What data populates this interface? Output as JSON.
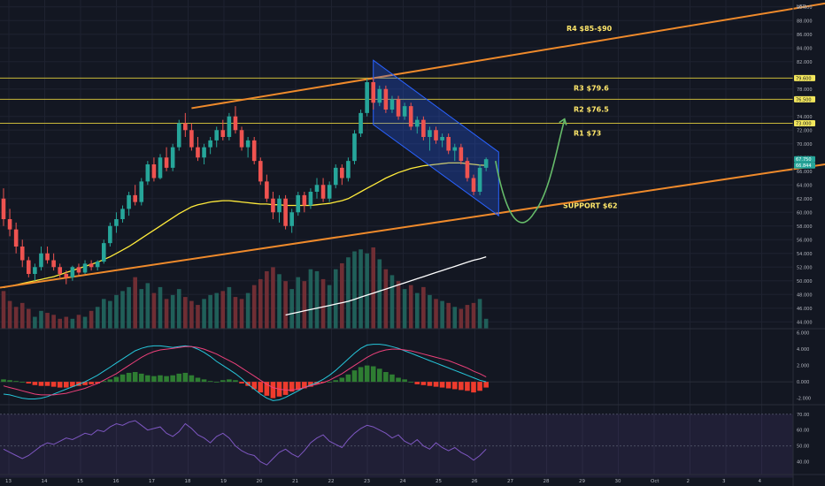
{
  "chart_data": {
    "type": "candlestick",
    "price_axis": {
      "ticks": [
        "90.000",
        "88.000",
        "86.000",
        "84.000",
        "82.000",
        "78.000",
        "74.000",
        "72.000",
        "70.000",
        "68.000",
        "66.000",
        "64.000",
        "62.000",
        "60.000",
        "58.000",
        "56.000",
        "54.000",
        "52.000",
        "50.000",
        "48.000",
        "46.000",
        "44.000"
      ],
      "axis_unit": "USD",
      "range": [
        43,
        91
      ]
    },
    "price_badges": [
      {
        "label": "79.600",
        "value": 79.6,
        "style": "yellow"
      },
      {
        "label": "76.500",
        "value": 76.5,
        "style": "yellow"
      },
      {
        "label": "73.000",
        "value": 73.0,
        "style": "yellow"
      },
      {
        "label": "67.750",
        "value": 67.75,
        "style": "teal"
      },
      {
        "label": "66.844",
        "value": 66.844,
        "style": "teal"
      }
    ],
    "levels": [
      {
        "label": "R4 $85-$90",
        "value": 86.5
      },
      {
        "label": "R3 $79.6",
        "value": 79.6
      },
      {
        "label": "R2 $76.5",
        "value": 76.5
      },
      {
        "label": "R1 $73",
        "value": 73
      },
      {
        "label": "SUPPORT $62",
        "value": 62
      }
    ],
    "date_axis": [
      "13",
      "14",
      "15",
      "16",
      "17",
      "18",
      "19",
      "20",
      "21",
      "22",
      "23",
      "24",
      "25",
      "26",
      "27",
      "28",
      "29",
      "30",
      "Oct",
      "2",
      "3",
      "4"
    ],
    "candles": [
      [
        62,
        63.5,
        58,
        59
      ],
      [
        59,
        60.5,
        56.5,
        57.5
      ],
      [
        57.5,
        58.5,
        54,
        55
      ],
      [
        55,
        56,
        52,
        53
      ],
      [
        53,
        53.5,
        50.5,
        51
      ],
      [
        51,
        52.5,
        50,
        52
      ],
      [
        52,
        55,
        51.5,
        54
      ],
      [
        54,
        55,
        52.5,
        53
      ],
      [
        53,
        54,
        51.5,
        52
      ],
      [
        52,
        52.5,
        50.5,
        51
      ],
      [
        51,
        51.5,
        49.5,
        50.5
      ],
      [
        50.5,
        52.2,
        50,
        52
      ],
      [
        52,
        52.5,
        50.8,
        51.2
      ],
      [
        51.2,
        53,
        51,
        52.5
      ],
      [
        52.5,
        53,
        51.5,
        52
      ],
      [
        52,
        53,
        51.5,
        52.8
      ],
      [
        52.8,
        56,
        52.5,
        55.5
      ],
      [
        55.5,
        58.5,
        55,
        58
      ],
      [
        58,
        60,
        57,
        59
      ],
      [
        59,
        61,
        58.5,
        60.5
      ],
      [
        60.5,
        63,
        59.5,
        62.5
      ],
      [
        62.5,
        64,
        61,
        61.5
      ],
      [
        61.5,
        65,
        61,
        64.5
      ],
      [
        64.5,
        67.5,
        64,
        67
      ],
      [
        67,
        68,
        64.5,
        65
      ],
      [
        65,
        68.5,
        64.8,
        68
      ],
      [
        68,
        69.5,
        66,
        66.5
      ],
      [
        66.5,
        70,
        66,
        69.5
      ],
      [
        69.5,
        73.5,
        69,
        73
      ],
      [
        73,
        74.5,
        71,
        72
      ],
      [
        72,
        73,
        69,
        69.5
      ],
      [
        69.5,
        71,
        67.5,
        68
      ],
      [
        68,
        70,
        67,
        69.5
      ],
      [
        69.5,
        71,
        68.5,
        70.5
      ],
      [
        70.5,
        72.5,
        69.5,
        72
      ],
      [
        72,
        73.5,
        70.5,
        71
      ],
      [
        71,
        74.5,
        70.5,
        74
      ],
      [
        74,
        75.5,
        71.5,
        72
      ],
      [
        72,
        72.5,
        69,
        69.5
      ],
      [
        69.5,
        71,
        68,
        70.5
      ],
      [
        70.5,
        71,
        67,
        67.5
      ],
      [
        67.5,
        68,
        64,
        64.5
      ],
      [
        64.5,
        65.5,
        61.5,
        62
      ],
      [
        62,
        63,
        59,
        60
      ],
      [
        60,
        62.5,
        58.5,
        62
      ],
      [
        62,
        62.5,
        57.5,
        58
      ],
      [
        58,
        60.5,
        57,
        60
      ],
      [
        60,
        63,
        59.5,
        62.5
      ],
      [
        62.5,
        63,
        60,
        61
      ],
      [
        61,
        63.5,
        60.5,
        63
      ],
      [
        63,
        65,
        62,
        64
      ],
      [
        64,
        65,
        61.5,
        62
      ],
      [
        62,
        64.5,
        61.5,
        64
      ],
      [
        64,
        67,
        63.5,
        66.5
      ],
      [
        66.5,
        67,
        64,
        65
      ],
      [
        65,
        68,
        64.5,
        67.5
      ],
      [
        67.5,
        72,
        67,
        71.5
      ],
      [
        71.5,
        75,
        71,
        74.5
      ],
      [
        74.5,
        79.5,
        74,
        79
      ],
      [
        79,
        79.5,
        75,
        76
      ],
      [
        76,
        78.5,
        75.5,
        78
      ],
      [
        78,
        78.5,
        74.5,
        75
      ],
      [
        75,
        77,
        74.5,
        76.5
      ],
      [
        76.5,
        77,
        73.5,
        74
      ],
      [
        74,
        76,
        73.5,
        75.5
      ],
      [
        75.5,
        76,
        72,
        72.5
      ],
      [
        72.5,
        74,
        71.5,
        73.5
      ],
      [
        73.5,
        74,
        70.5,
        71
      ],
      [
        71,
        72.5,
        69,
        72
      ],
      [
        72,
        72.5,
        70,
        70.5
      ],
      [
        70.5,
        71.5,
        69.5,
        71
      ],
      [
        71,
        71.5,
        68.5,
        69
      ],
      [
        69,
        70,
        67.5,
        69.5
      ],
      [
        69.5,
        70,
        67,
        67.5
      ],
      [
        67.5,
        68,
        64.5,
        65
      ],
      [
        65,
        65.5,
        62.5,
        63
      ],
      [
        63,
        67,
        62.5,
        66.5
      ],
      [
        66.5,
        68,
        66,
        67.75
      ]
    ],
    "volume": [
      38,
      28,
      22,
      26,
      20,
      12,
      18,
      16,
      14,
      10,
      12,
      10,
      14,
      12,
      18,
      22,
      30,
      28,
      34,
      38,
      42,
      52,
      40,
      46,
      36,
      42,
      30,
      34,
      40,
      32,
      28,
      24,
      30,
      34,
      36,
      38,
      42,
      32,
      30,
      36,
      44,
      50,
      58,
      62,
      55,
      48,
      40,
      52,
      48,
      60,
      58,
      50,
      44,
      60,
      66,
      72,
      78,
      80,
      76,
      82,
      70,
      60,
      54,
      48,
      40,
      44,
      36,
      42,
      34,
      30,
      28,
      26,
      22,
      20,
      24,
      26,
      30,
      10
    ],
    "moving_averages": [
      {
        "color": "#ffeb3b",
        "values": [
          49,
          49.2,
          49.4,
          49.6,
          49.8,
          50,
          50.2,
          50.4,
          50.6,
          50.9,
          51.2,
          51.5,
          51.8,
          52.1,
          52.4,
          52.7,
          53.1,
          53.5,
          54,
          54.5,
          55,
          55.6,
          56.2,
          56.8,
          57.4,
          58,
          58.6,
          59.2,
          59.8,
          60.3,
          60.8,
          61.1,
          61.3,
          61.5,
          61.6,
          61.7,
          61.7,
          61.6,
          61.5,
          61.4,
          61.3,
          61.2,
          61.2,
          61.1,
          61.1,
          61,
          61,
          61,
          61,
          61,
          61.1,
          61.2,
          61.3,
          61.5,
          61.7,
          62,
          62.5,
          63,
          63.5,
          64,
          64.5,
          65,
          65.4,
          65.8,
          66.1,
          66.4,
          66.6,
          66.8,
          66.9,
          67,
          67.1,
          67.2,
          67.2,
          67.2,
          67.1,
          67,
          66.9,
          66.844
        ]
      },
      {
        "color": "#ffffff",
        "values": [
          null,
          null,
          null,
          null,
          null,
          null,
          null,
          null,
          null,
          null,
          null,
          null,
          null,
          null,
          null,
          null,
          null,
          null,
          null,
          null,
          null,
          null,
          null,
          null,
          null,
          null,
          null,
          null,
          null,
          null,
          null,
          null,
          null,
          null,
          null,
          null,
          null,
          null,
          null,
          null,
          null,
          null,
          null,
          null,
          null,
          45,
          45.2,
          45.4,
          45.6,
          45.8,
          46,
          46.2,
          46.4,
          46.6,
          46.8,
          47,
          47.3,
          47.6,
          47.9,
          48.2,
          48.5,
          48.8,
          49.1,
          49.4,
          49.7,
          50,
          50.3,
          50.6,
          50.9,
          51.2,
          51.5,
          51.8,
          52.1,
          52.4,
          52.7,
          53,
          53.2,
          53.5
        ]
      }
    ],
    "macd_axis": [
      "6.000",
      "4.000",
      "2.000",
      "0.000",
      "-2.000"
    ],
    "macd_range": [
      -2.8,
      6.5
    ],
    "macd": {
      "hist": [
        0.3,
        0.2,
        0.1,
        0.0,
        -0.2,
        -0.4,
        -0.5,
        -0.5,
        -0.6,
        -0.7,
        -0.7,
        -0.6,
        -0.5,
        -0.4,
        -0.3,
        -0.2,
        0.1,
        0.3,
        0.6,
        0.9,
        1.1,
        1.2,
        1.0,
        0.8,
        0.7,
        0.8,
        0.7,
        0.8,
        1.0,
        1.1,
        0.8,
        0.5,
        0.3,
        0.1,
        0.0,
        0.2,
        0.3,
        0.2,
        -0.2,
        -0.5,
        -0.9,
        -1.3,
        -1.7,
        -2.0,
        -1.8,
        -1.6,
        -1.2,
        -1.0,
        -0.8,
        -0.6,
        -0.3,
        -0.1,
        0.0,
        0.2,
        0.5,
        0.9,
        1.4,
        1.8,
        2.0,
        1.9,
        1.6,
        1.2,
        0.9,
        0.5,
        0.3,
        0.0,
        -0.3,
        -0.4,
        -0.5,
        -0.6,
        -0.7,
        -0.8,
        -0.9,
        -1.0,
        -1.1,
        -1.3,
        -1.1,
        -0.7
      ],
      "macd": [
        -1.5,
        -1.6,
        -1.8,
        -2.0,
        -2.1,
        -2.1,
        -2.0,
        -1.8,
        -1.5,
        -1.2,
        -0.9,
        -0.6,
        -0.3,
        0.0,
        0.4,
        0.8,
        1.3,
        1.8,
        2.3,
        2.8,
        3.3,
        3.8,
        4.1,
        4.3,
        4.4,
        4.4,
        4.3,
        4.2,
        4.3,
        4.4,
        4.3,
        4.0,
        3.6,
        3.1,
        2.5,
        2.0,
        1.5,
        1.0,
        0.4,
        -0.3,
        -0.9,
        -1.5,
        -2.0,
        -2.3,
        -2.2,
        -1.9,
        -1.5,
        -1.1,
        -0.7,
        -0.4,
        -0.1,
        0.3,
        0.8,
        1.4,
        2.1,
        2.8,
        3.5,
        4.1,
        4.5,
        4.6,
        4.6,
        4.5,
        4.3,
        4.1,
        3.8,
        3.5,
        3.2,
        2.9,
        2.6,
        2.3,
        2.0,
        1.7,
        1.4,
        1.1,
        0.8,
        0.5,
        0.2,
        0.0
      ],
      "signal": [
        -0.5,
        -0.7,
        -0.9,
        -1.1,
        -1.3,
        -1.5,
        -1.6,
        -1.6,
        -1.6,
        -1.5,
        -1.4,
        -1.2,
        -1.0,
        -0.8,
        -0.5,
        -0.2,
        0.2,
        0.6,
        1.0,
        1.5,
        2.0,
        2.5,
        3.0,
        3.4,
        3.7,
        3.9,
        4.0,
        4.1,
        4.2,
        4.3,
        4.3,
        4.2,
        4.0,
        3.7,
        3.4,
        3.0,
        2.6,
        2.2,
        1.7,
        1.2,
        0.7,
        0.2,
        -0.3,
        -0.7,
        -0.9,
        -1.0,
        -1.0,
        -0.9,
        -0.7,
        -0.5,
        -0.3,
        -0.1,
        0.2,
        0.6,
        1.0,
        1.5,
        2.0,
        2.5,
        3.0,
        3.4,
        3.7,
        3.9,
        4.0,
        4.0,
        3.9,
        3.8,
        3.6,
        3.4,
        3.2,
        3.0,
        2.8,
        2.6,
        2.3,
        2.0,
        1.7,
        1.3,
        1.0,
        0.6
      ]
    },
    "rsi_axis": [
      "70.00",
      "60.00",
      "50.00",
      "40.00"
    ],
    "rsi_range": [
      32,
      76
    ],
    "rsi_band": [
      30,
      70
    ],
    "rsi": [
      48,
      46,
      44,
      42,
      44,
      47,
      50,
      52,
      51,
      53,
      55,
      54,
      56,
      58,
      57,
      60,
      59,
      62,
      64,
      63,
      65,
      66,
      63,
      60,
      61,
      62,
      58,
      56,
      59,
      64,
      61,
      57,
      55,
      52,
      56,
      58,
      55,
      50,
      47,
      45,
      44,
      40,
      38,
      42,
      46,
      48,
      45,
      43,
      47,
      52,
      55,
      57,
      53,
      51,
      49,
      54,
      58,
      61,
      63,
      62,
      60,
      58,
      55,
      57,
      53,
      51,
      54,
      50,
      48,
      52,
      49,
      47,
      49,
      46,
      44,
      41,
      44,
      48
    ]
  }
}
